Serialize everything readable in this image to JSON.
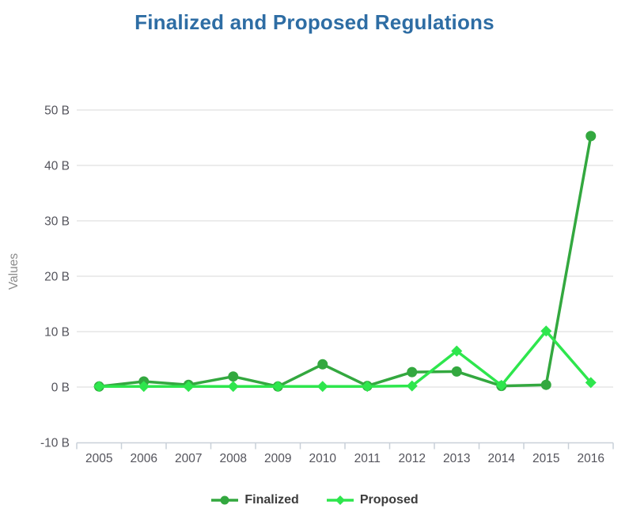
{
  "chart_data": {
    "type": "line",
    "title": "Finalized and Proposed Regulations",
    "categories": [
      "2005",
      "2006",
      "2007",
      "2008",
      "2009",
      "2010",
      "2011",
      "2012",
      "2013",
      "2014",
      "2015",
      "2016"
    ],
    "series": [
      {
        "name": "Finalized",
        "color": "#33a83f",
        "marker": "circle",
        "values": [
          0.1,
          1.0,
          0.4,
          1.9,
          0.1,
          4.1,
          0.2,
          2.7,
          2.8,
          0.2,
          0.4,
          45.3
        ]
      },
      {
        "name": "Proposed",
        "color": "#2ee64d",
        "marker": "diamond",
        "values": [
          0.1,
          0.1,
          0.1,
          0.1,
          0.1,
          0.1,
          0.1,
          0.2,
          6.5,
          0.3,
          10.1,
          0.8
        ]
      }
    ],
    "xlabel": "",
    "ylabel": "Values",
    "yticks": [
      -10,
      0,
      10,
      20,
      30,
      40,
      50
    ],
    "ytick_labels": [
      "-10 B",
      "0 B",
      "10 B",
      "20 B",
      "30 B",
      "40 B",
      "50 B"
    ],
    "ylim": [
      -10,
      55
    ],
    "grid": true,
    "legend_position": "bottom"
  },
  "colors": {
    "title": "#2e6da4",
    "tick_label": "#54545c",
    "axis_line": "#c9d0d8",
    "gridline": "#dadada",
    "ylabel": "#8b8b8b",
    "legend_text": "#3c3c3c"
  }
}
